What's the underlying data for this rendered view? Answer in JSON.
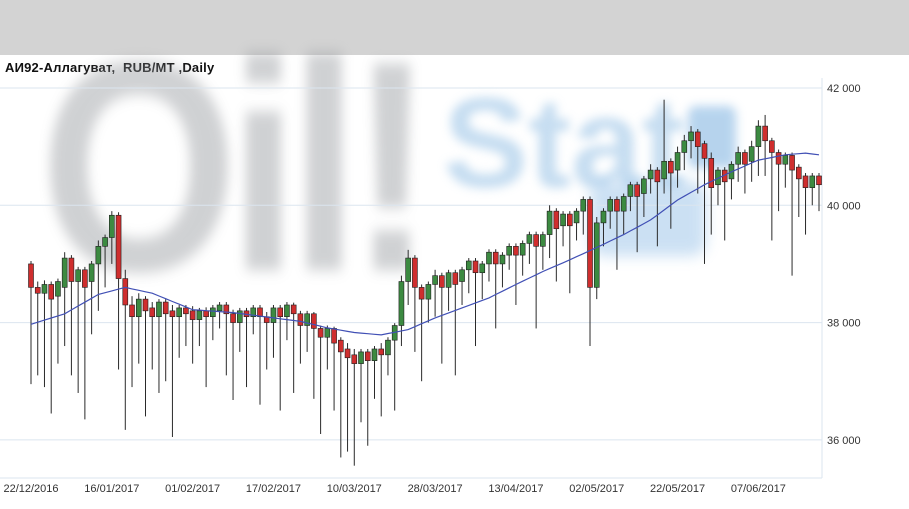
{
  "header": {
    "title": "АИ92-Аллагуват,  RUB/MT ,Daily"
  },
  "watermark": {
    "text_primary": "Oil!",
    "text_secondary": "Stat",
    "primary_color": "#8f9398",
    "secondary_color": "#aecfeb"
  },
  "chart_data": {
    "type": "candlestick",
    "title": "АИ92-Аллагуват, RUB/MT, Daily",
    "instrument": "АИ92-Аллагуват",
    "units": "RUB/MT",
    "timeframe": "Daily",
    "legend_position": "none",
    "grid": "horizontal",
    "ylim": [
      35350,
      42170
    ],
    "y_ticks": [
      {
        "value": 42000,
        "label": "42 000"
      },
      {
        "value": 40000,
        "label": "40 000"
      },
      {
        "value": 38000,
        "label": "38 000"
      },
      {
        "value": 36000,
        "label": "36 000"
      }
    ],
    "x_ticks": [
      {
        "index": 0,
        "label": "22/12/2016"
      },
      {
        "index": 12,
        "label": "16/01/2017"
      },
      {
        "index": 24,
        "label": "01/02/2017"
      },
      {
        "index": 36,
        "label": "17/02/2017"
      },
      {
        "index": 48,
        "label": "10/03/2017"
      },
      {
        "index": 60,
        "label": "28/03/2017"
      },
      {
        "index": 72,
        "label": "13/04/2017"
      },
      {
        "index": 84,
        "label": "02/05/2017"
      },
      {
        "index": 96,
        "label": "22/05/2017"
      },
      {
        "index": 108,
        "label": "07/06/2017"
      }
    ],
    "colors": {
      "up": "#3c8a41",
      "down": "#cf2e2e",
      "wick": "#2a2a2a",
      "body_outline": "#1f1f1f",
      "ma": "#4150b5",
      "grid": "#dbe5ef",
      "axis_text": "#333333"
    },
    "series_note": "candles are [open, high, low, close] per trading day; ma is moving-average value per day",
    "candles": [
      [
        39000,
        39050,
        36950,
        38600
      ],
      [
        38600,
        38700,
        37100,
        38500
      ],
      [
        38500,
        38720,
        36900,
        38650
      ],
      [
        38650,
        38700,
        36450,
        38400
      ],
      [
        38450,
        38750,
        37300,
        38700
      ],
      [
        38600,
        39200,
        37600,
        39100
      ],
      [
        39100,
        39150,
        37100,
        38700
      ],
      [
        38700,
        38950,
        36800,
        38900
      ],
      [
        38900,
        38950,
        36350,
        38600
      ],
      [
        38700,
        39050,
        37800,
        39000
      ],
      [
        39000,
        39400,
        38200,
        39300
      ],
      [
        39300,
        39500,
        38600,
        39450
      ],
      [
        39450,
        39900,
        39000,
        39830
      ],
      [
        39830,
        39880,
        37200,
        38750
      ],
      [
        38750,
        38900,
        36170,
        38300
      ],
      [
        38300,
        38450,
        36900,
        38100
      ],
      [
        38100,
        38500,
        37300,
        38400
      ],
      [
        38400,
        38450,
        36400,
        38200
      ],
      [
        38250,
        38350,
        37200,
        38100
      ],
      [
        38100,
        38400,
        36800,
        38350
      ],
      [
        38350,
        38400,
        37000,
        38150
      ],
      [
        38200,
        38300,
        36050,
        38100
      ],
      [
        38100,
        38300,
        37400,
        38250
      ],
      [
        38250,
        38300,
        37600,
        38150
      ],
      [
        38200,
        38280,
        37300,
        38050
      ],
      [
        38050,
        38250,
        37600,
        38200
      ],
      [
        38200,
        38260,
        36900,
        38100
      ],
      [
        38100,
        38300,
        37700,
        38250
      ],
      [
        38200,
        38350,
        37900,
        38300
      ],
      [
        38300,
        38350,
        37100,
        38150
      ],
      [
        38150,
        38220,
        36680,
        38000
      ],
      [
        38000,
        38250,
        37500,
        38200
      ],
      [
        38200,
        38250,
        36900,
        38100
      ],
      [
        38100,
        38300,
        37800,
        38250
      ],
      [
        38250,
        38300,
        36600,
        38100
      ],
      [
        38100,
        38180,
        37200,
        38000
      ],
      [
        38000,
        38300,
        37400,
        38250
      ],
      [
        38250,
        38300,
        36500,
        38100
      ],
      [
        38100,
        38350,
        37700,
        38300
      ],
      [
        38300,
        38340,
        36800,
        38150
      ],
      [
        38150,
        38200,
        37300,
        37950
      ],
      [
        37950,
        38200,
        37500,
        38150
      ],
      [
        38150,
        38180,
        36700,
        37900
      ],
      [
        37900,
        37950,
        36100,
        37750
      ],
      [
        37750,
        37950,
        37200,
        37900
      ],
      [
        37900,
        37930,
        36500,
        37650
      ],
      [
        37700,
        37750,
        35700,
        37500
      ],
      [
        37550,
        37650,
        35800,
        37400
      ],
      [
        37450,
        37550,
        35560,
        37300
      ],
      [
        37300,
        37550,
        36300,
        37500
      ],
      [
        37500,
        37550,
        35900,
        37350
      ],
      [
        37350,
        37600,
        36700,
        37550
      ],
      [
        37550,
        37650,
        36400,
        37450
      ],
      [
        37450,
        37750,
        37100,
        37700
      ],
      [
        37700,
        37990,
        36500,
        37950
      ],
      [
        37950,
        38800,
        37600,
        38700
      ],
      [
        38700,
        39240,
        38300,
        39100
      ],
      [
        39100,
        39150,
        37500,
        38600
      ],
      [
        38600,
        38650,
        37000,
        38400
      ],
      [
        38400,
        38700,
        38000,
        38650
      ],
      [
        38650,
        38900,
        38100,
        38800
      ],
      [
        38800,
        38850,
        37300,
        38600
      ],
      [
        38600,
        38900,
        38200,
        38850
      ],
      [
        38850,
        38900,
        37100,
        38650
      ],
      [
        38700,
        38950,
        38300,
        38900
      ],
      [
        38900,
        39100,
        38500,
        39050
      ],
      [
        39050,
        39100,
        37600,
        38850
      ],
      [
        38850,
        39050,
        38400,
        39000
      ],
      [
        39000,
        39250,
        38700,
        39200
      ],
      [
        39200,
        39250,
        37900,
        39000
      ],
      [
        39000,
        39200,
        38600,
        39150
      ],
      [
        39150,
        39350,
        38900,
        39300
      ],
      [
        39300,
        39350,
        38300,
        39150
      ],
      [
        39150,
        39400,
        38800,
        39350
      ],
      [
        39350,
        39550,
        39000,
        39500
      ],
      [
        39500,
        39550,
        37900,
        39300
      ],
      [
        39300,
        39550,
        38900,
        39500
      ],
      [
        39500,
        40000,
        39100,
        39900
      ],
      [
        39900,
        39950,
        38700,
        39600
      ],
      [
        39650,
        39900,
        39300,
        39850
      ],
      [
        39850,
        39900,
        38500,
        39650
      ],
      [
        39700,
        39950,
        39400,
        39900
      ],
      [
        39900,
        40150,
        39500,
        40100
      ],
      [
        40100,
        40150,
        37600,
        38600
      ],
      [
        38600,
        39800,
        38400,
        39700
      ],
      [
        39700,
        39950,
        39300,
        39900
      ],
      [
        39900,
        40150,
        39600,
        40100
      ],
      [
        40100,
        40150,
        38900,
        39900
      ],
      [
        39900,
        40200,
        39500,
        40150
      ],
      [
        40150,
        40400,
        39900,
        40350
      ],
      [
        40350,
        40400,
        39200,
        40150
      ],
      [
        40200,
        40500,
        39800,
        40450
      ],
      [
        40450,
        40700,
        40200,
        40600
      ],
      [
        40600,
        40650,
        39300,
        40400
      ],
      [
        40450,
        41800,
        40200,
        40750
      ],
      [
        40750,
        40800,
        39600,
        40550
      ],
      [
        40600,
        41000,
        40300,
        40900
      ],
      [
        40900,
        41200,
        40600,
        41100
      ],
      [
        41100,
        41350,
        40800,
        41250
      ],
      [
        41250,
        41300,
        40200,
        41000
      ],
      [
        41050,
        41100,
        39000,
        40800
      ],
      [
        40800,
        40900,
        39500,
        40300
      ],
      [
        40350,
        40650,
        40000,
        40600
      ],
      [
        40600,
        40650,
        39400,
        40400
      ],
      [
        40450,
        40750,
        40100,
        40700
      ],
      [
        40700,
        41000,
        40400,
        40900
      ],
      [
        40900,
        40950,
        40200,
        40700
      ],
      [
        40750,
        41100,
        40400,
        41000
      ],
      [
        41000,
        41450,
        40500,
        41350
      ],
      [
        41350,
        41540,
        40500,
        41100
      ],
      [
        41100,
        41150,
        39400,
        40900
      ],
      [
        40900,
        40950,
        39900,
        40700
      ],
      [
        40700,
        40900,
        40300,
        40850
      ],
      [
        40850,
        40900,
        38800,
        40600
      ],
      [
        40650,
        40700,
        39800,
        40450
      ],
      [
        40500,
        40550,
        39500,
        40300
      ],
      [
        40300,
        40550,
        40000,
        40500
      ],
      [
        40500,
        40550,
        39900,
        40350
      ]
    ],
    "ma": [
      37970,
      38006,
      38042,
      38078,
      38114,
      38150,
      38216,
      38282,
      38348,
      38414,
      38480,
      38510,
      38540,
      38570,
      38600,
      38575,
      38550,
      38525,
      38500,
      38453,
      38407,
      38360,
      38313,
      38267,
      38220,
      38212,
      38203,
      38195,
      38187,
      38178,
      38170,
      38155,
      38140,
      38125,
      38110,
      38095,
      38080,
      38065,
      38050,
      38035,
      38020,
      37993,
      37965,
      37938,
      37910,
      37890,
      37870,
      37850,
      37830,
      37820,
      37810,
      37800,
      37790,
      37813,
      37835,
      37858,
      37880,
      37930,
      37980,
      38030,
      38080,
      38123,
      38165,
      38208,
      38250,
      38293,
      38335,
      38378,
      38420,
      38478,
      38535,
      38593,
      38650,
      38705,
      38760,
      38815,
      38870,
      38920,
      38970,
      39020,
      39070,
      39123,
      39175,
      39228,
      39280,
      39335,
      39390,
      39445,
      39500,
      39563,
      39625,
      39688,
      39750,
      39835,
      39920,
      40005,
      40090,
      40155,
      40220,
      40285,
      40350,
      40405,
      40460,
      40515,
      40570,
      40620,
      40670,
      40720,
      40770,
      40793,
      40815,
      40838,
      40860,
      40870,
      40880,
      40890,
      40875,
      40860
    ]
  }
}
